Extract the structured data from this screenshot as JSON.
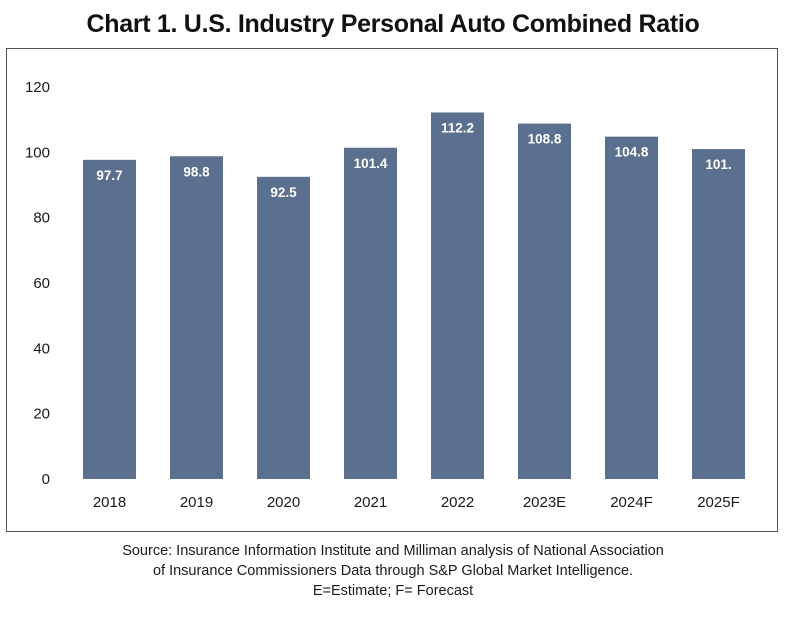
{
  "title": "Chart 1. U.S. Industry Personal Auto Combined Ratio",
  "chart_data": {
    "type": "bar",
    "title": "Chart 1. U.S. Industry Personal Auto Combined Ratio",
    "categories": [
      "2018",
      "2019",
      "2020",
      "2021",
      "2022",
      "2023E",
      "2024F",
      "2025F"
    ],
    "values": [
      97.7,
      98.8,
      92.5,
      101.4,
      112.2,
      108.8,
      104.8,
      101.0
    ],
    "data_labels": [
      "97.7",
      "98.8",
      "92.5",
      "101.4",
      "112.2",
      "108.8",
      "104.8",
      "101."
    ],
    "xlabel": "",
    "ylabel": "",
    "ylim": [
      0,
      120
    ],
    "yticks": [
      "0",
      "20",
      "40",
      "60",
      "80",
      "100",
      "120"
    ],
    "grid": false,
    "legend": "none",
    "colors": {
      "bar": "#5b6f8f",
      "data_label": "#ffffff",
      "axis_text": "#1a1a1a"
    }
  },
  "source": {
    "line1": "Source: Insurance Information Institute and Milliman analysis of National Association",
    "line2": "of Insurance Commissioners Data through S&P Global Market Intelligence.",
    "line3": "E=Estimate; F= Forecast"
  }
}
